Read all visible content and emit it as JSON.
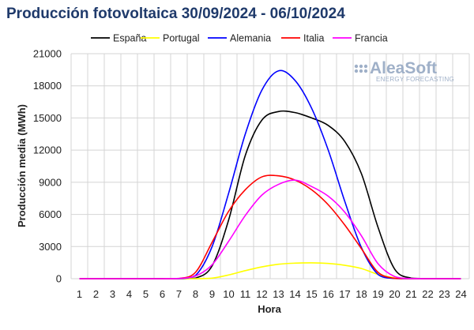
{
  "chart_data": {
    "type": "line",
    "title": "Producción fotovoltaica 30/09/2024 - 06/10/2024",
    "xlabel": "Hora",
    "ylabel": "Producción media (MWh)",
    "x": [
      1,
      2,
      3,
      4,
      5,
      6,
      7,
      8,
      9,
      10,
      11,
      12,
      13,
      14,
      15,
      16,
      17,
      18,
      19,
      20,
      21,
      22,
      23,
      24
    ],
    "ylim": [
      0,
      21000
    ],
    "yticks": [
      0,
      3000,
      6000,
      9000,
      12000,
      15000,
      18000,
      21000
    ],
    "yticks_labels": [
      "0",
      "3000",
      "6000",
      "9000",
      "12000",
      "15000",
      "18000",
      "21000"
    ],
    "grid": true,
    "legend_position": "top",
    "series": [
      {
        "name": "España",
        "color": "#000000",
        "values": [
          0,
          0,
          0,
          0,
          0,
          0,
          0,
          50,
          1200,
          5500,
          11500,
          14800,
          15600,
          15500,
          15000,
          14300,
          12800,
          9800,
          4800,
          900,
          50,
          0,
          0,
          0
        ]
      },
      {
        "name": "Portugal",
        "color": "#ffff00",
        "values": [
          0,
          0,
          0,
          0,
          0,
          0,
          0,
          0,
          50,
          350,
          750,
          1100,
          1350,
          1450,
          1480,
          1420,
          1250,
          950,
          400,
          80,
          0,
          0,
          0,
          0
        ]
      },
      {
        "name": "Alemania",
        "color": "#0000ff",
        "values": [
          0,
          0,
          0,
          0,
          0,
          0,
          0,
          300,
          3000,
          8000,
          13500,
          17600,
          19400,
          18500,
          15900,
          12000,
          7200,
          2900,
          400,
          20,
          0,
          0,
          0,
          0
        ]
      },
      {
        "name": "Italia",
        "color": "#ff0000",
        "values": [
          0,
          0,
          0,
          0,
          0,
          0,
          20,
          600,
          3400,
          6300,
          8300,
          9500,
          9600,
          9200,
          8300,
          6900,
          5000,
          2800,
          600,
          30,
          0,
          0,
          0,
          0
        ]
      },
      {
        "name": "Francia",
        "color": "#ff00ff",
        "values": [
          0,
          0,
          0,
          0,
          0,
          0,
          20,
          250,
          1300,
          3500,
          5900,
          7800,
          8800,
          9200,
          8600,
          7700,
          6200,
          4000,
          1400,
          200,
          10,
          0,
          0,
          0
        ]
      }
    ]
  },
  "logo": {
    "name": "AleaSoft",
    "tagline": "ENERGY FORECASTING",
    "color": "#9fb0c8"
  }
}
